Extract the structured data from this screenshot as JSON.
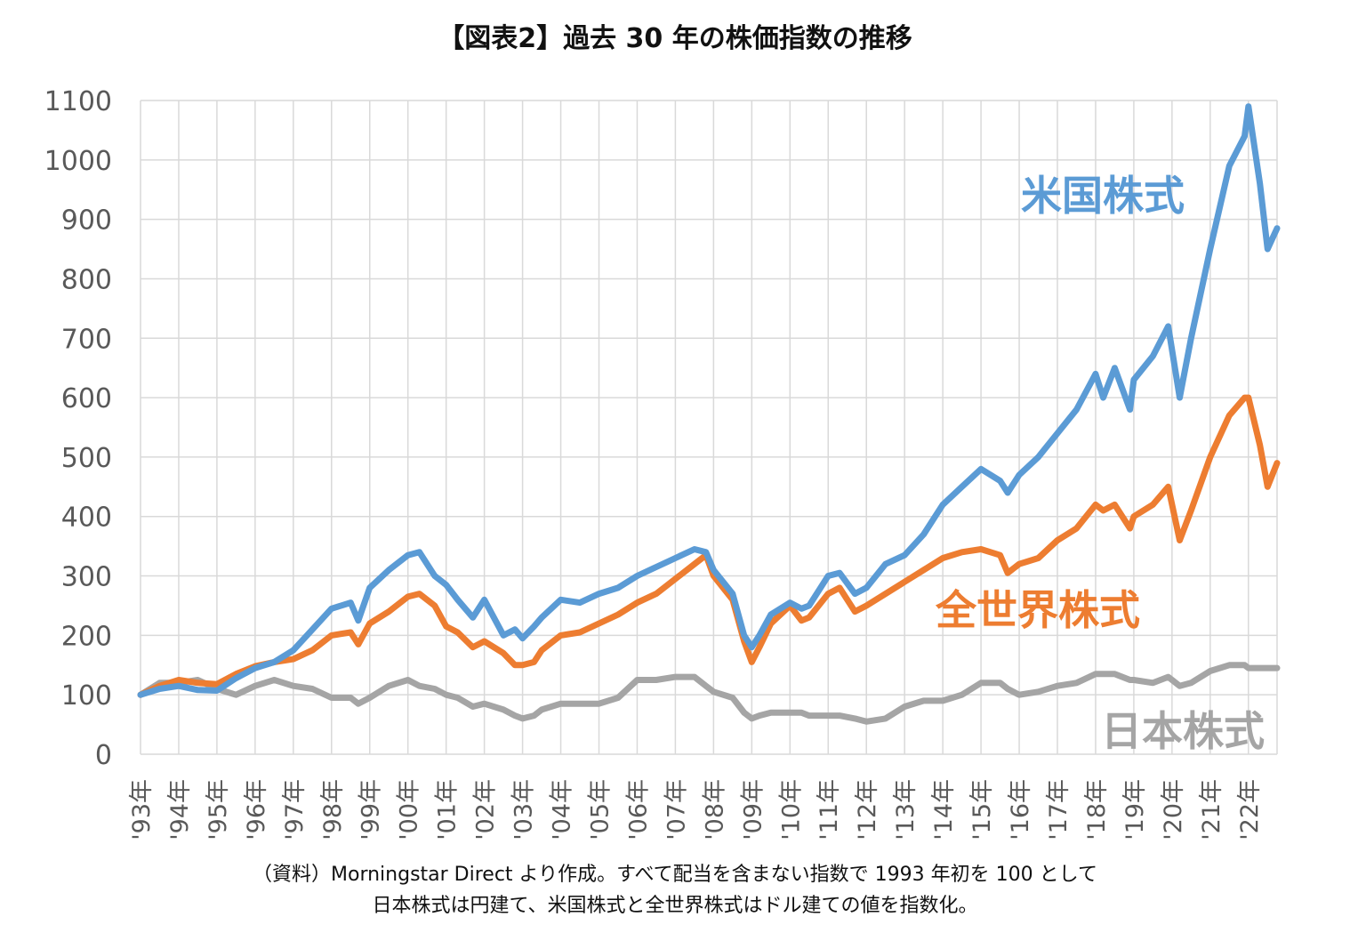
{
  "colors": {
    "us": "#5b9bd5",
    "world": "#ed7d31",
    "japan": "#a5a5a5",
    "grid": "#d9d9d9",
    "axis_text": "#595959"
  },
  "notes": {
    "line1": "（資料）Morningstar Direct より作成。すべて配当を含まない指数で 1993 年初を 100 として",
    "line2": "日本株式は円建て、米国株式と全世界株式はドル建ての値を指数化。"
  },
  "chart_data": {
    "type": "line",
    "title": "【図表2】過去 30 年の株価指数の推移",
    "xlabel": "",
    "ylabel": "",
    "ylim": [
      0,
      1100
    ],
    "yticks": [
      0,
      100,
      200,
      300,
      400,
      500,
      600,
      700,
      800,
      900,
      1000,
      1100
    ],
    "xlim": [
      1993.0,
      2022.75
    ],
    "categories": [
      "'93年",
      "'94年",
      "'95年",
      "'96年",
      "'97年",
      "'98年",
      "'99年",
      "'00年",
      "'01年",
      "'02年",
      "'03年",
      "'04年",
      "'05年",
      "'06年",
      "'07年",
      "'08年",
      "'09年",
      "'10年",
      "'11年",
      "'12年",
      "'13年",
      "'14年",
      "'15年",
      "'16年",
      "'17年",
      "'18年",
      "'19年",
      "'20年",
      "'21年",
      "'22年"
    ],
    "grid": true,
    "legend": "inline labels",
    "series": [
      {
        "name": "米国株式",
        "color": "#5b9bd5",
        "x": [
          1993.0,
          1993.5,
          1994.0,
          1994.5,
          1995.0,
          1995.5,
          1996.0,
          1996.5,
          1997.0,
          1997.5,
          1998.0,
          1998.5,
          1998.7,
          1999.0,
          1999.5,
          2000.0,
          2000.3,
          2000.7,
          2001.0,
          2001.3,
          2001.7,
          2002.0,
          2002.5,
          2002.8,
          2003.0,
          2003.3,
          2003.5,
          2004.0,
          2004.5,
          2005.0,
          2005.5,
          2006.0,
          2006.5,
          2007.0,
          2007.5,
          2007.8,
          2008.0,
          2008.5,
          2008.8,
          2009.0,
          2009.2,
          2009.5,
          2010.0,
          2010.3,
          2010.5,
          2011.0,
          2011.3,
          2011.7,
          2012.0,
          2012.5,
          2013.0,
          2013.5,
          2014.0,
          2014.5,
          2015.0,
          2015.5,
          2015.7,
          2016.0,
          2016.5,
          2017.0,
          2017.5,
          2018.0,
          2018.2,
          2018.5,
          2018.9,
          2019.0,
          2019.5,
          2019.9,
          2020.2,
          2020.5,
          2021.0,
          2021.5,
          2021.9,
          2022.0,
          2022.3,
          2022.5,
          2022.75
        ],
        "values": [
          100,
          110,
          115,
          108,
          107,
          128,
          145,
          155,
          175,
          210,
          245,
          255,
          225,
          280,
          310,
          335,
          340,
          300,
          285,
          260,
          230,
          260,
          200,
          210,
          195,
          215,
          230,
          260,
          255,
          270,
          280,
          300,
          315,
          330,
          345,
          340,
          310,
          270,
          200,
          180,
          200,
          235,
          255,
          245,
          250,
          300,
          305,
          270,
          280,
          320,
          335,
          370,
          420,
          450,
          480,
          460,
          440,
          470,
          500,
          540,
          580,
          640,
          600,
          650,
          580,
          630,
          670,
          720,
          600,
          700,
          850,
          990,
          1040,
          1090,
          960,
          850,
          885
        ]
      },
      {
        "name": "全世界株式",
        "color": "#ed7d31",
        "x": [
          1993.0,
          1993.5,
          1994.0,
          1994.5,
          1995.0,
          1995.5,
          1996.0,
          1996.5,
          1997.0,
          1997.5,
          1998.0,
          1998.5,
          1998.7,
          1999.0,
          1999.5,
          2000.0,
          2000.3,
          2000.7,
          2001.0,
          2001.3,
          2001.7,
          2002.0,
          2002.5,
          2002.8,
          2003.0,
          2003.3,
          2003.5,
          2004.0,
          2004.5,
          2005.0,
          2005.5,
          2006.0,
          2006.5,
          2007.0,
          2007.5,
          2007.8,
          2008.0,
          2008.5,
          2008.8,
          2009.0,
          2009.2,
          2009.5,
          2010.0,
          2010.3,
          2010.5,
          2011.0,
          2011.3,
          2011.7,
          2012.0,
          2012.5,
          2013.0,
          2013.5,
          2014.0,
          2014.5,
          2015.0,
          2015.5,
          2015.7,
          2016.0,
          2016.5,
          2017.0,
          2017.5,
          2018.0,
          2018.2,
          2018.5,
          2018.9,
          2019.0,
          2019.5,
          2019.9,
          2020.2,
          2020.5,
          2021.0,
          2021.5,
          2021.9,
          2022.0,
          2022.3,
          2022.5,
          2022.75
        ],
        "values": [
          100,
          115,
          125,
          120,
          118,
          135,
          148,
          155,
          160,
          175,
          200,
          205,
          185,
          220,
          240,
          265,
          270,
          250,
          215,
          205,
          180,
          190,
          170,
          150,
          150,
          155,
          175,
          200,
          205,
          220,
          235,
          255,
          270,
          295,
          320,
          335,
          300,
          260,
          190,
          155,
          180,
          220,
          250,
          225,
          230,
          270,
          280,
          240,
          250,
          270,
          290,
          310,
          330,
          340,
          345,
          335,
          305,
          320,
          330,
          360,
          380,
          420,
          410,
          420,
          380,
          400,
          420,
          450,
          360,
          410,
          500,
          570,
          600,
          600,
          520,
          450,
          490
        ]
      },
      {
        "name": "日本株式",
        "color": "#a5a5a5",
        "x": [
          1993.0,
          1993.5,
          1994.0,
          1994.5,
          1995.0,
          1995.5,
          1996.0,
          1996.5,
          1997.0,
          1997.5,
          1998.0,
          1998.5,
          1998.7,
          1999.0,
          1999.5,
          2000.0,
          2000.3,
          2000.7,
          2001.0,
          2001.3,
          2001.7,
          2002.0,
          2002.5,
          2002.8,
          2003.0,
          2003.3,
          2003.5,
          2004.0,
          2004.5,
          2005.0,
          2005.5,
          2006.0,
          2006.5,
          2007.0,
          2007.5,
          2007.8,
          2008.0,
          2008.5,
          2008.8,
          2009.0,
          2009.2,
          2009.5,
          2010.0,
          2010.3,
          2010.5,
          2011.0,
          2011.3,
          2011.7,
          2012.0,
          2012.5,
          2013.0,
          2013.5,
          2014.0,
          2014.5,
          2015.0,
          2015.5,
          2015.7,
          2016.0,
          2016.5,
          2017.0,
          2017.5,
          2018.0,
          2018.2,
          2018.5,
          2018.9,
          2019.0,
          2019.5,
          2019.9,
          2020.2,
          2020.5,
          2021.0,
          2021.5,
          2021.9,
          2022.0,
          2022.3,
          2022.5,
          2022.75
        ],
        "values": [
          100,
          120,
          120,
          125,
          110,
          100,
          115,
          125,
          115,
          110,
          95,
          95,
          85,
          95,
          115,
          125,
          115,
          110,
          100,
          95,
          80,
          85,
          75,
          65,
          60,
          65,
          75,
          85,
          85,
          85,
          95,
          125,
          125,
          130,
          130,
          115,
          105,
          95,
          70,
          60,
          65,
          70,
          70,
          70,
          65,
          65,
          65,
          60,
          55,
          60,
          80,
          90,
          90,
          100,
          120,
          120,
          110,
          100,
          105,
          115,
          120,
          135,
          135,
          135,
          125,
          125,
          120,
          130,
          115,
          120,
          140,
          150,
          150,
          145,
          145,
          145,
          145
        ]
      }
    ],
    "inline_labels": [
      {
        "series": "米国株式",
        "text": "米国株式"
      },
      {
        "series": "全世界株式",
        "text": "全世界株式"
      },
      {
        "series": "日本株式",
        "text": "日本株式"
      }
    ]
  }
}
